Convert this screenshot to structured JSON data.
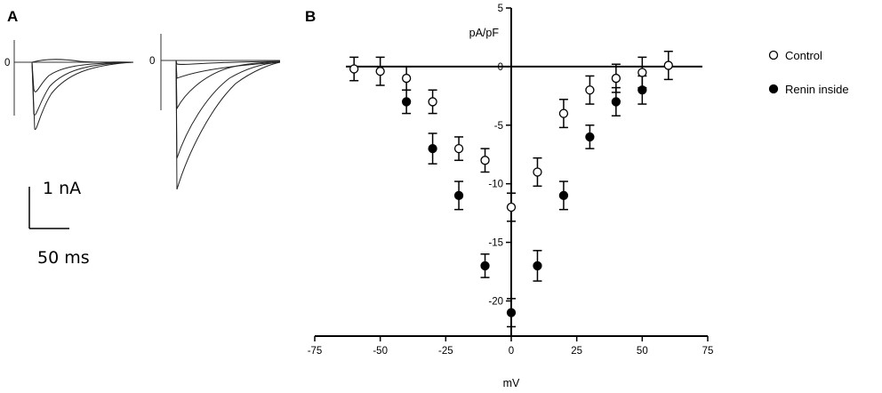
{
  "panels": {
    "a_label": "A",
    "b_label": "B"
  },
  "panel_a": {
    "zero_label_left": "0",
    "zero_label_right": "0",
    "scale_current": "1 nA",
    "scale_time": "50 ms"
  },
  "chart_data": {
    "type": "scatter",
    "title": "",
    "xlabel": "mV",
    "ylabel": "pA/pF",
    "xlim": [
      -75,
      75
    ],
    "ylim": [
      -23,
      5
    ],
    "xticks": [
      -75,
      -50,
      -25,
      0,
      25,
      50,
      75
    ],
    "yticks": [
      5,
      0,
      -5,
      -10,
      -15,
      -20
    ],
    "legend": "right",
    "series": [
      {
        "name": "Control",
        "marker": "open-circle",
        "x": [
          -60,
          -50,
          -40,
          -30,
          -20,
          -10,
          0,
          10,
          20,
          30,
          40,
          50,
          60
        ],
        "y": [
          -0.2,
          -0.4,
          -1.0,
          -3.0,
          -7.0,
          -8.0,
          -12.0,
          -9.0,
          -4.0,
          -2.0,
          -1.0,
          -0.5,
          0.1
        ],
        "err": [
          1.0,
          1.2,
          1.0,
          1.0,
          1.0,
          1.0,
          1.2,
          1.2,
          1.2,
          1.2,
          1.2,
          1.3,
          1.2
        ]
      },
      {
        "name": "Renin inside",
        "marker": "filled-circle",
        "x": [
          -40,
          -30,
          -20,
          -10,
          0,
          10,
          20,
          30,
          40,
          50
        ],
        "y": [
          -3.0,
          -7.0,
          -11.0,
          -17.0,
          -21.0,
          -17.0,
          -11.0,
          -6.0,
          -3.0,
          -2.0
        ],
        "err": [
          1.0,
          1.3,
          1.2,
          1.0,
          1.2,
          1.3,
          1.2,
          1.0,
          1.2,
          1.2
        ]
      }
    ]
  }
}
